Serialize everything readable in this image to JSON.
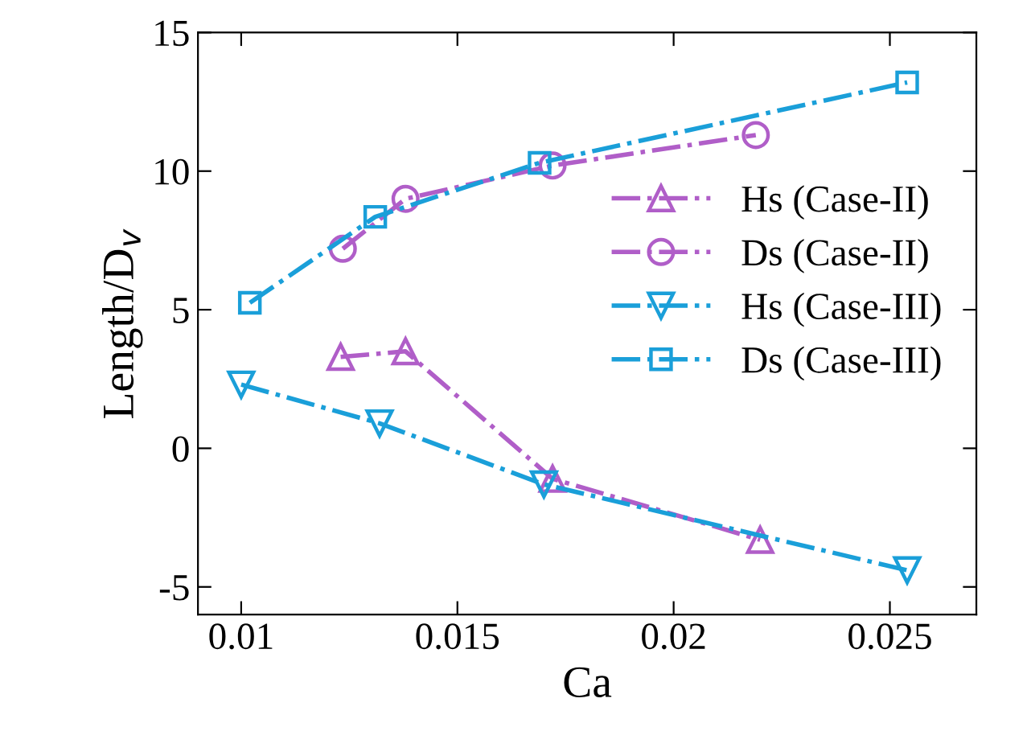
{
  "chart_data": {
    "type": "line",
    "xlabel": "Ca",
    "ylabel": "Length/D$_{v}$",
    "xlim": [
      0.009,
      0.027
    ],
    "ylim": [
      -6,
      15
    ],
    "xticks": [
      0.01,
      0.015,
      0.02,
      0.025
    ],
    "yticks": [
      -5,
      0,
      5,
      10,
      15
    ],
    "grid": false,
    "legend": "right",
    "line_style": "dashdot",
    "series": [
      {
        "name": "Hs (Case-II)",
        "color": "#b05ec8",
        "marker": "triangle",
        "x": [
          0.0123,
          0.0138,
          0.0172,
          0.022
        ],
        "values": [
          3.3,
          3.5,
          -1.1,
          -3.3
        ]
      },
      {
        "name": "Ds (Case-II)",
        "color": "#b05ec8",
        "marker": "circle",
        "x": [
          0.01235,
          0.0138,
          0.0172,
          0.0219
        ],
        "values": [
          7.2,
          9.0,
          10.2,
          11.3
        ]
      },
      {
        "name": "Hs (Case-III)",
        "color": "#1a9fd9",
        "marker": "triangle_down",
        "x": [
          0.01,
          0.0132,
          0.017,
          0.0254
        ],
        "values": [
          2.3,
          0.9,
          -1.3,
          -4.4
        ]
      },
      {
        "name": "Ds (Case-III)",
        "color": "#1a9fd9",
        "marker": "square",
        "x": [
          0.0102,
          0.0131,
          0.0169,
          0.0254
        ],
        "values": [
          5.25,
          8.35,
          10.3,
          13.2
        ]
      }
    ]
  }
}
